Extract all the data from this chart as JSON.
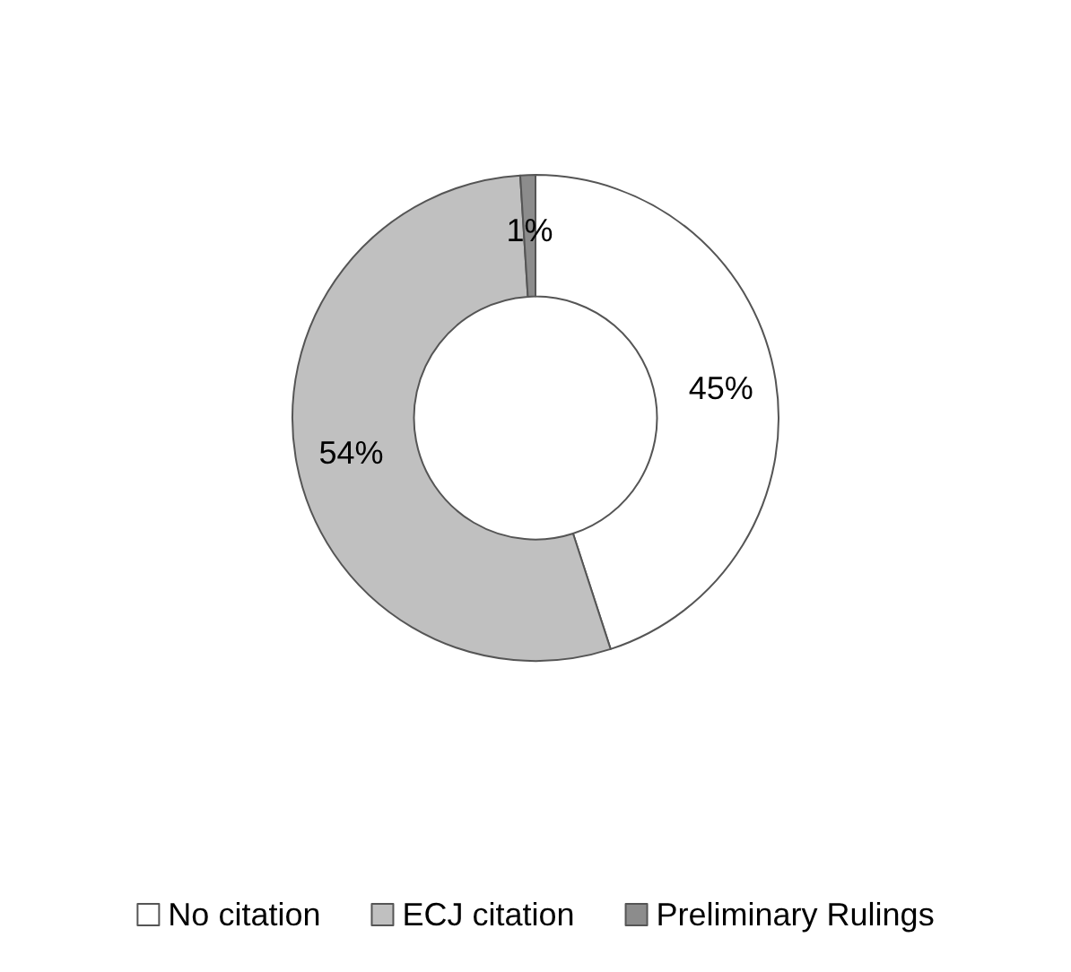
{
  "chart_data": {
    "type": "donut",
    "categories": [
      "No citation",
      "ECJ citation",
      "Preliminary Rulings"
    ],
    "values": [
      45,
      54,
      1
    ],
    "colors": [
      "#ffffff",
      "#c0c0c0",
      "#8c8c8c"
    ],
    "value_labels": [
      "45%",
      "54%",
      "1%"
    ],
    "legend": "bottom"
  }
}
